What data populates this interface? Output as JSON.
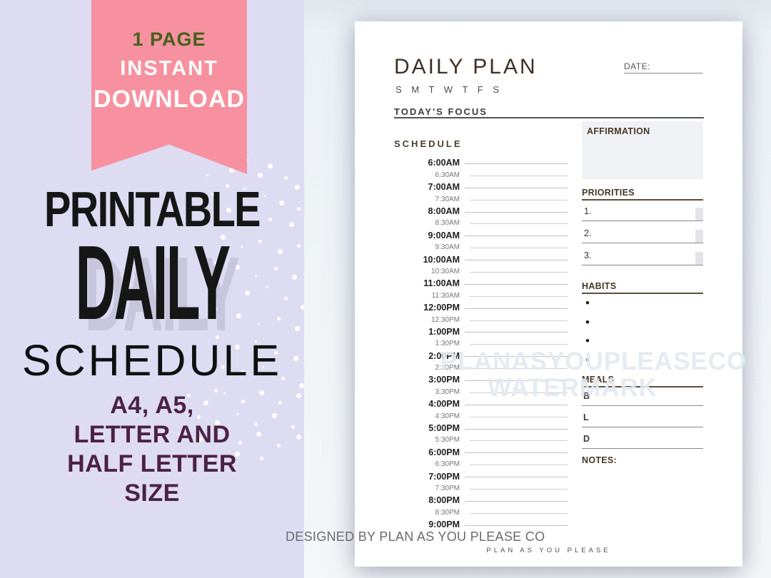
{
  "badge": {
    "line1": "1 PAGE",
    "line2": "INSTANT",
    "line3": "DOWNLOAD"
  },
  "left_panel": {
    "title_line1": "PRINTABLE",
    "title_line2": "DAILY",
    "title_line3": "SCHEDULE",
    "sizes": [
      "A4, A5,",
      "LETTER AND",
      "HALF LETTER",
      "SIZE"
    ]
  },
  "planner": {
    "title": "DAILY PLAN",
    "days": "S M T W T F S",
    "date_label": "DATE:",
    "focus_label": "TODAY'S FOCUS",
    "schedule_label": "SCHEDULE",
    "times": [
      "6:00AM",
      "6:30AM",
      "7:00AM",
      "7:30AM",
      "8:00AM",
      "8:30AM",
      "9:00AM",
      "9:30AM",
      "10:00AM",
      "10:30AM",
      "11:00AM",
      "11:30AM",
      "12:00PM",
      "12:30PM",
      "1:00PM",
      "1:30PM",
      "2:00PM",
      "2:30PM",
      "3:00PM",
      "3:30PM",
      "4:00PM",
      "4:30PM",
      "5:00PM",
      "5:30PM",
      "6:00PM",
      "6:30PM",
      "7:00PM",
      "7:30PM",
      "8:00PM",
      "8:30PM",
      "9:00PM"
    ],
    "affirmation_label": "AFFIRMATION",
    "priorities_label": "PRIORITIES",
    "priority_items": [
      "1.",
      "2.",
      "3."
    ],
    "habits_label": "HABITS",
    "habit_bullets": [
      "•",
      "•",
      "•",
      "•"
    ],
    "meals_label": "MEALS",
    "meal_items": [
      "B",
      "L",
      "D"
    ],
    "notes_label": "NOTES:",
    "watermark_line1": "PLANASYOUPLEASECO",
    "watermark_line2": "WATERMARK",
    "brand_footer": "PLAN AS YOU PLEASE"
  },
  "footer": {
    "designed_by": "DESIGNED BY PLAN AS YOU PLEASE CO"
  },
  "colors": {
    "ribbon_pink": "#F7919F",
    "badge_green": "#44611C",
    "panel_lavender": "#DDDCF3",
    "sizes_plum": "#4C2145",
    "heading_brown": "#473827",
    "affirmation_box": "#EFF1F5",
    "paper_bg_blue_gray": "#ECF1F5",
    "daily_shadow_gray": "#C8C6DD"
  }
}
